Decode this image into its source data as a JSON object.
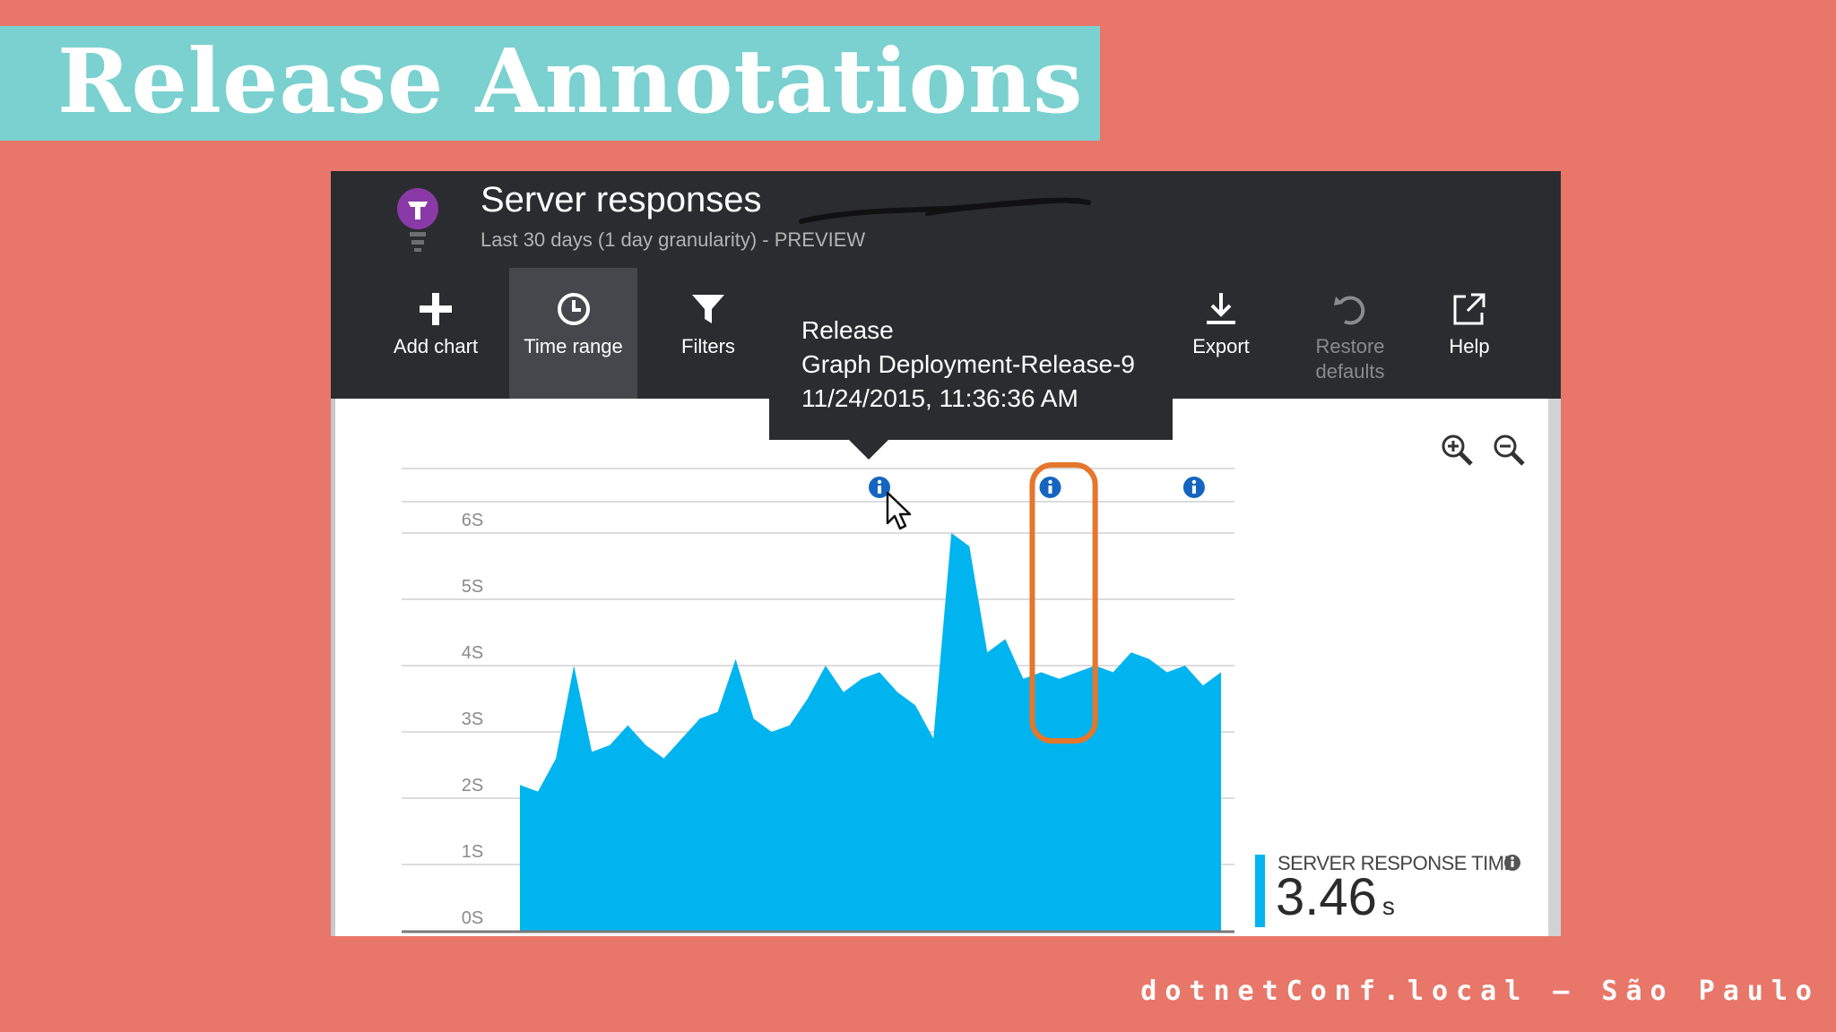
{
  "slide": {
    "title": "Release Annotations",
    "footer": "dotnetConf.local – São Paulo"
  },
  "blade": {
    "title": "Server responses",
    "subtitle": "Last 30 days (1 day granularity)  - PREVIEW"
  },
  "toolbar": {
    "add_chart": "Add chart",
    "time_range": "Time range",
    "filters": "Filters",
    "export": "Export",
    "restore_defaults": "Restore defaults",
    "help": "Help"
  },
  "tooltip": {
    "line1": "Release",
    "line2": "Graph Deployment-Release-9",
    "line3": "11/24/2015, 11:36:36 AM"
  },
  "metric": {
    "label": "SERVER RESPONSE TIME",
    "value": "3.46",
    "unit": "s"
  },
  "colors": {
    "area": "#00b4ef",
    "annotation": "#1565c0",
    "highlight": "#e5762b",
    "slide_bg": "#e8776a",
    "title_band": "#7ad1cf"
  },
  "chart_data": {
    "type": "area",
    "yticks": [
      "6S",
      "5S",
      "4S",
      "3S",
      "2S",
      "1S",
      "0S"
    ],
    "ylim": [
      0,
      6.3
    ],
    "x": [
      1,
      2,
      3,
      4,
      5,
      6,
      7,
      8,
      9,
      10,
      11,
      12,
      13,
      14,
      15,
      16,
      17,
      18,
      19,
      20,
      21,
      22,
      23,
      24,
      25,
      26,
      27,
      28,
      29,
      30,
      31,
      32,
      33,
      34,
      35,
      36,
      37,
      38,
      39,
      40
    ],
    "values": [
      2.2,
      2.1,
      2.6,
      4.0,
      2.7,
      2.8,
      3.1,
      2.8,
      2.6,
      2.9,
      3.2,
      3.3,
      4.1,
      3.2,
      3.0,
      3.1,
      3.5,
      4.0,
      3.6,
      3.8,
      3.9,
      3.6,
      3.4,
      2.9,
      6.0,
      5.8,
      4.2,
      4.4,
      3.8,
      3.9,
      3.8,
      3.9,
      4.0,
      3.9,
      4.2,
      4.1,
      3.9,
      4.0,
      3.7,
      3.9
    ],
    "annotations": [
      {
        "x": 21.0,
        "label": "info"
      },
      {
        "x": 30.5,
        "label": "info"
      },
      {
        "x": 38.5,
        "label": "info"
      }
    ],
    "highlight_range": [
      29.5,
      33.0
    ],
    "grid": true
  }
}
